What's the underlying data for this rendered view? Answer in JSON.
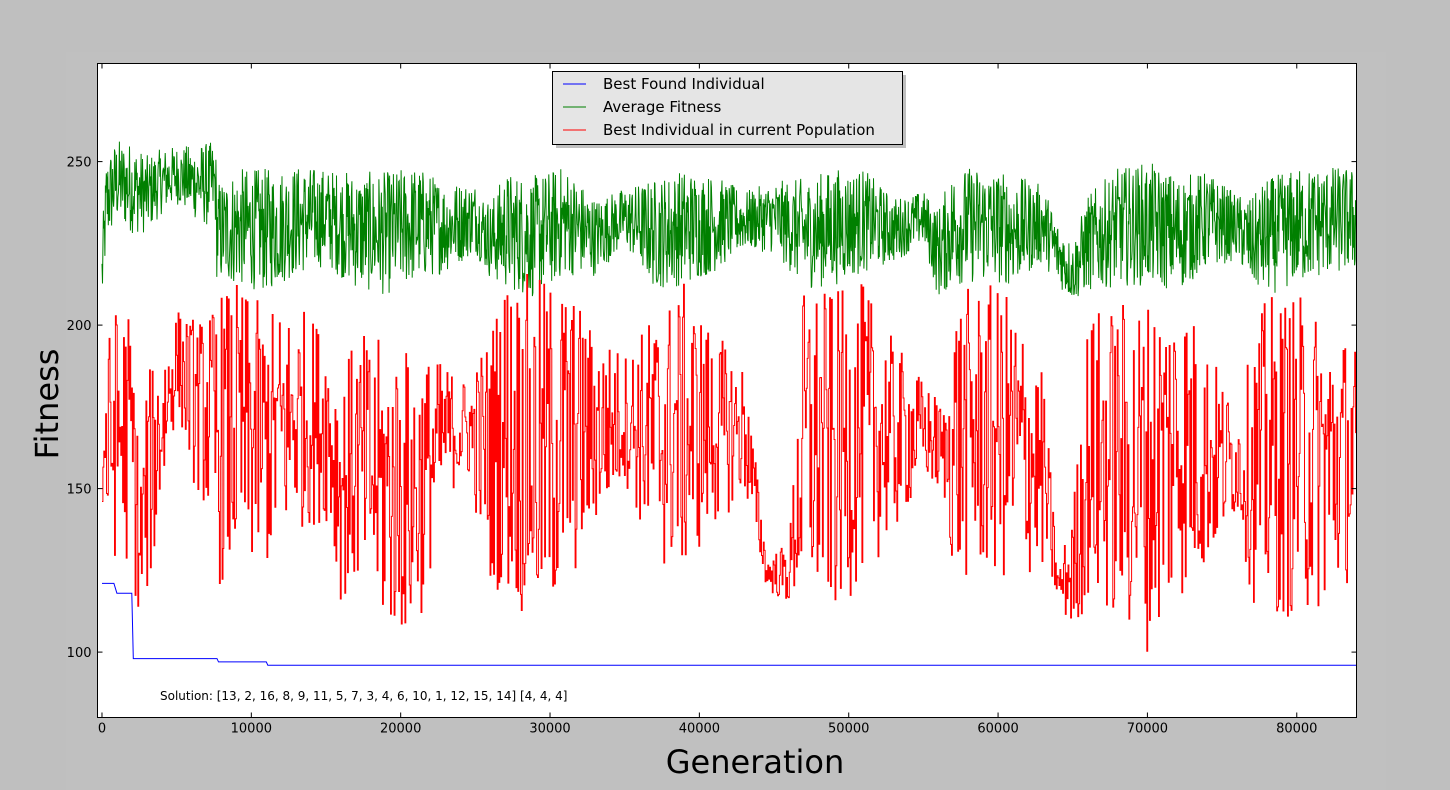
{
  "chart_data": {
    "type": "line",
    "title": "",
    "xlabel": "Generation",
    "ylabel": "Fitness",
    "xlim": [
      -300,
      84000
    ],
    "ylim": [
      80,
      280
    ],
    "xticks": [
      0,
      10000,
      20000,
      30000,
      40000,
      50000,
      60000,
      70000,
      80000
    ],
    "yticks": [
      100,
      150,
      200,
      250
    ],
    "grid": false,
    "legend_position": "top-center",
    "annotation": "Solution: [13, 2, 16, 8, 9, 11, 5, 7, 3, 4, 6, 10, 1, 12, 15, 14] [4, 4, 4]",
    "series": [
      {
        "name": "Best Found Individual",
        "color": "#0000ff",
        "style": "step",
        "x": [
          0,
          800,
          1000,
          2000,
          2100,
          7700,
          7800,
          11000,
          11100,
          84000
        ],
        "y": [
          121,
          121,
          118,
          118,
          98,
          98,
          97,
          97,
          96,
          96
        ]
      },
      {
        "name": "Average Fitness",
        "color": "#008000",
        "style": "noisy",
        "x": [
          0,
          300,
          1000,
          2000,
          3000,
          4000,
          5000,
          6000,
          7000,
          7600,
          7700,
          9000,
          11000,
          13000,
          15000,
          17000,
          19000,
          21000,
          23000,
          25000,
          26000,
          27000,
          29000,
          31000,
          33000,
          35000,
          37000,
          39000,
          41000,
          43000,
          45000,
          47000,
          49000,
          51000,
          53000,
          55000,
          56000,
          57000,
          59000,
          61000,
          63000,
          64000,
          65000,
          66000,
          68000,
          70000,
          72000,
          74000,
          76000,
          77000,
          78000,
          80000,
          82000,
          84000
        ],
        "y": [
          215,
          238,
          244,
          242,
          240,
          244,
          246,
          244,
          243,
          243,
          228,
          230,
          229,
          232,
          233,
          229,
          228,
          231,
          230,
          233,
          226,
          229,
          227,
          232,
          227,
          233,
          228,
          230,
          231,
          232,
          233,
          228,
          230,
          232,
          229,
          233,
          222,
          230,
          231,
          229,
          231,
          222,
          216,
          225,
          230,
          231,
          228,
          232,
          230,
          225,
          227,
          230,
          232,
          232
        ],
        "spread": [
          12,
          14,
          13,
          14,
          12,
          10,
          9,
          11,
          13,
          13,
          16,
          18,
          19,
          17,
          15,
          18,
          19,
          18,
          14,
          11,
          12,
          18,
          19,
          17,
          12,
          9,
          17,
          18,
          15,
          9,
          11,
          17,
          18,
          16,
          10,
          8,
          14,
          18,
          18,
          17,
          12,
          10,
          9,
          15,
          18,
          19,
          18,
          15,
          10,
          14,
          18,
          18,
          17,
          16
        ]
      },
      {
        "name": "Best Individual in current Population",
        "color": "#ff0000",
        "style": "noisy-step",
        "x": [
          0,
          1000,
          2000,
          2500,
          3000,
          4000,
          5000,
          6000,
          7000,
          7700,
          9000,
          11000,
          13000,
          15000,
          16000,
          17000,
          19000,
          21000,
          23000,
          24500,
          26000,
          27000,
          29000,
          31000,
          33000,
          35000,
          37000,
          39000,
          41000,
          43000,
          44500,
          46000,
          47000,
          49000,
          51000,
          53000,
          55000,
          56500,
          57000,
          59000,
          61000,
          63000,
          64000,
          65000,
          66000,
          68000,
          70000,
          72000,
          74000,
          76000,
          77000,
          78000,
          80000,
          82000,
          84000
        ],
        "y": [
          160,
          168,
          165,
          130,
          150,
          170,
          190,
          178,
          172,
          165,
          168,
          165,
          172,
          170,
          150,
          158,
          150,
          148,
          168,
          168,
          160,
          168,
          160,
          165,
          168,
          172,
          165,
          168,
          168,
          168,
          124,
          124,
          165,
          160,
          168,
          165,
          168,
          160,
          165,
          168,
          165,
          155,
          120,
          125,
          160,
          158,
          155,
          165,
          160,
          158,
          155,
          160,
          160,
          158,
          160
        ],
        "spread": [
          30,
          40,
          40,
          25,
          35,
          25,
          15,
          25,
          30,
          45,
          45,
          40,
          35,
          30,
          35,
          40,
          45,
          45,
          20,
          15,
          40,
          50,
          55,
          50,
          30,
          20,
          40,
          45,
          30,
          20,
          5,
          10,
          50,
          50,
          45,
          30,
          15,
          15,
          45,
          45,
          45,
          30,
          5,
          20,
          45,
          50,
          55,
          50,
          35,
          15,
          40,
          50,
          50,
          45,
          35
        ]
      }
    ]
  }
}
